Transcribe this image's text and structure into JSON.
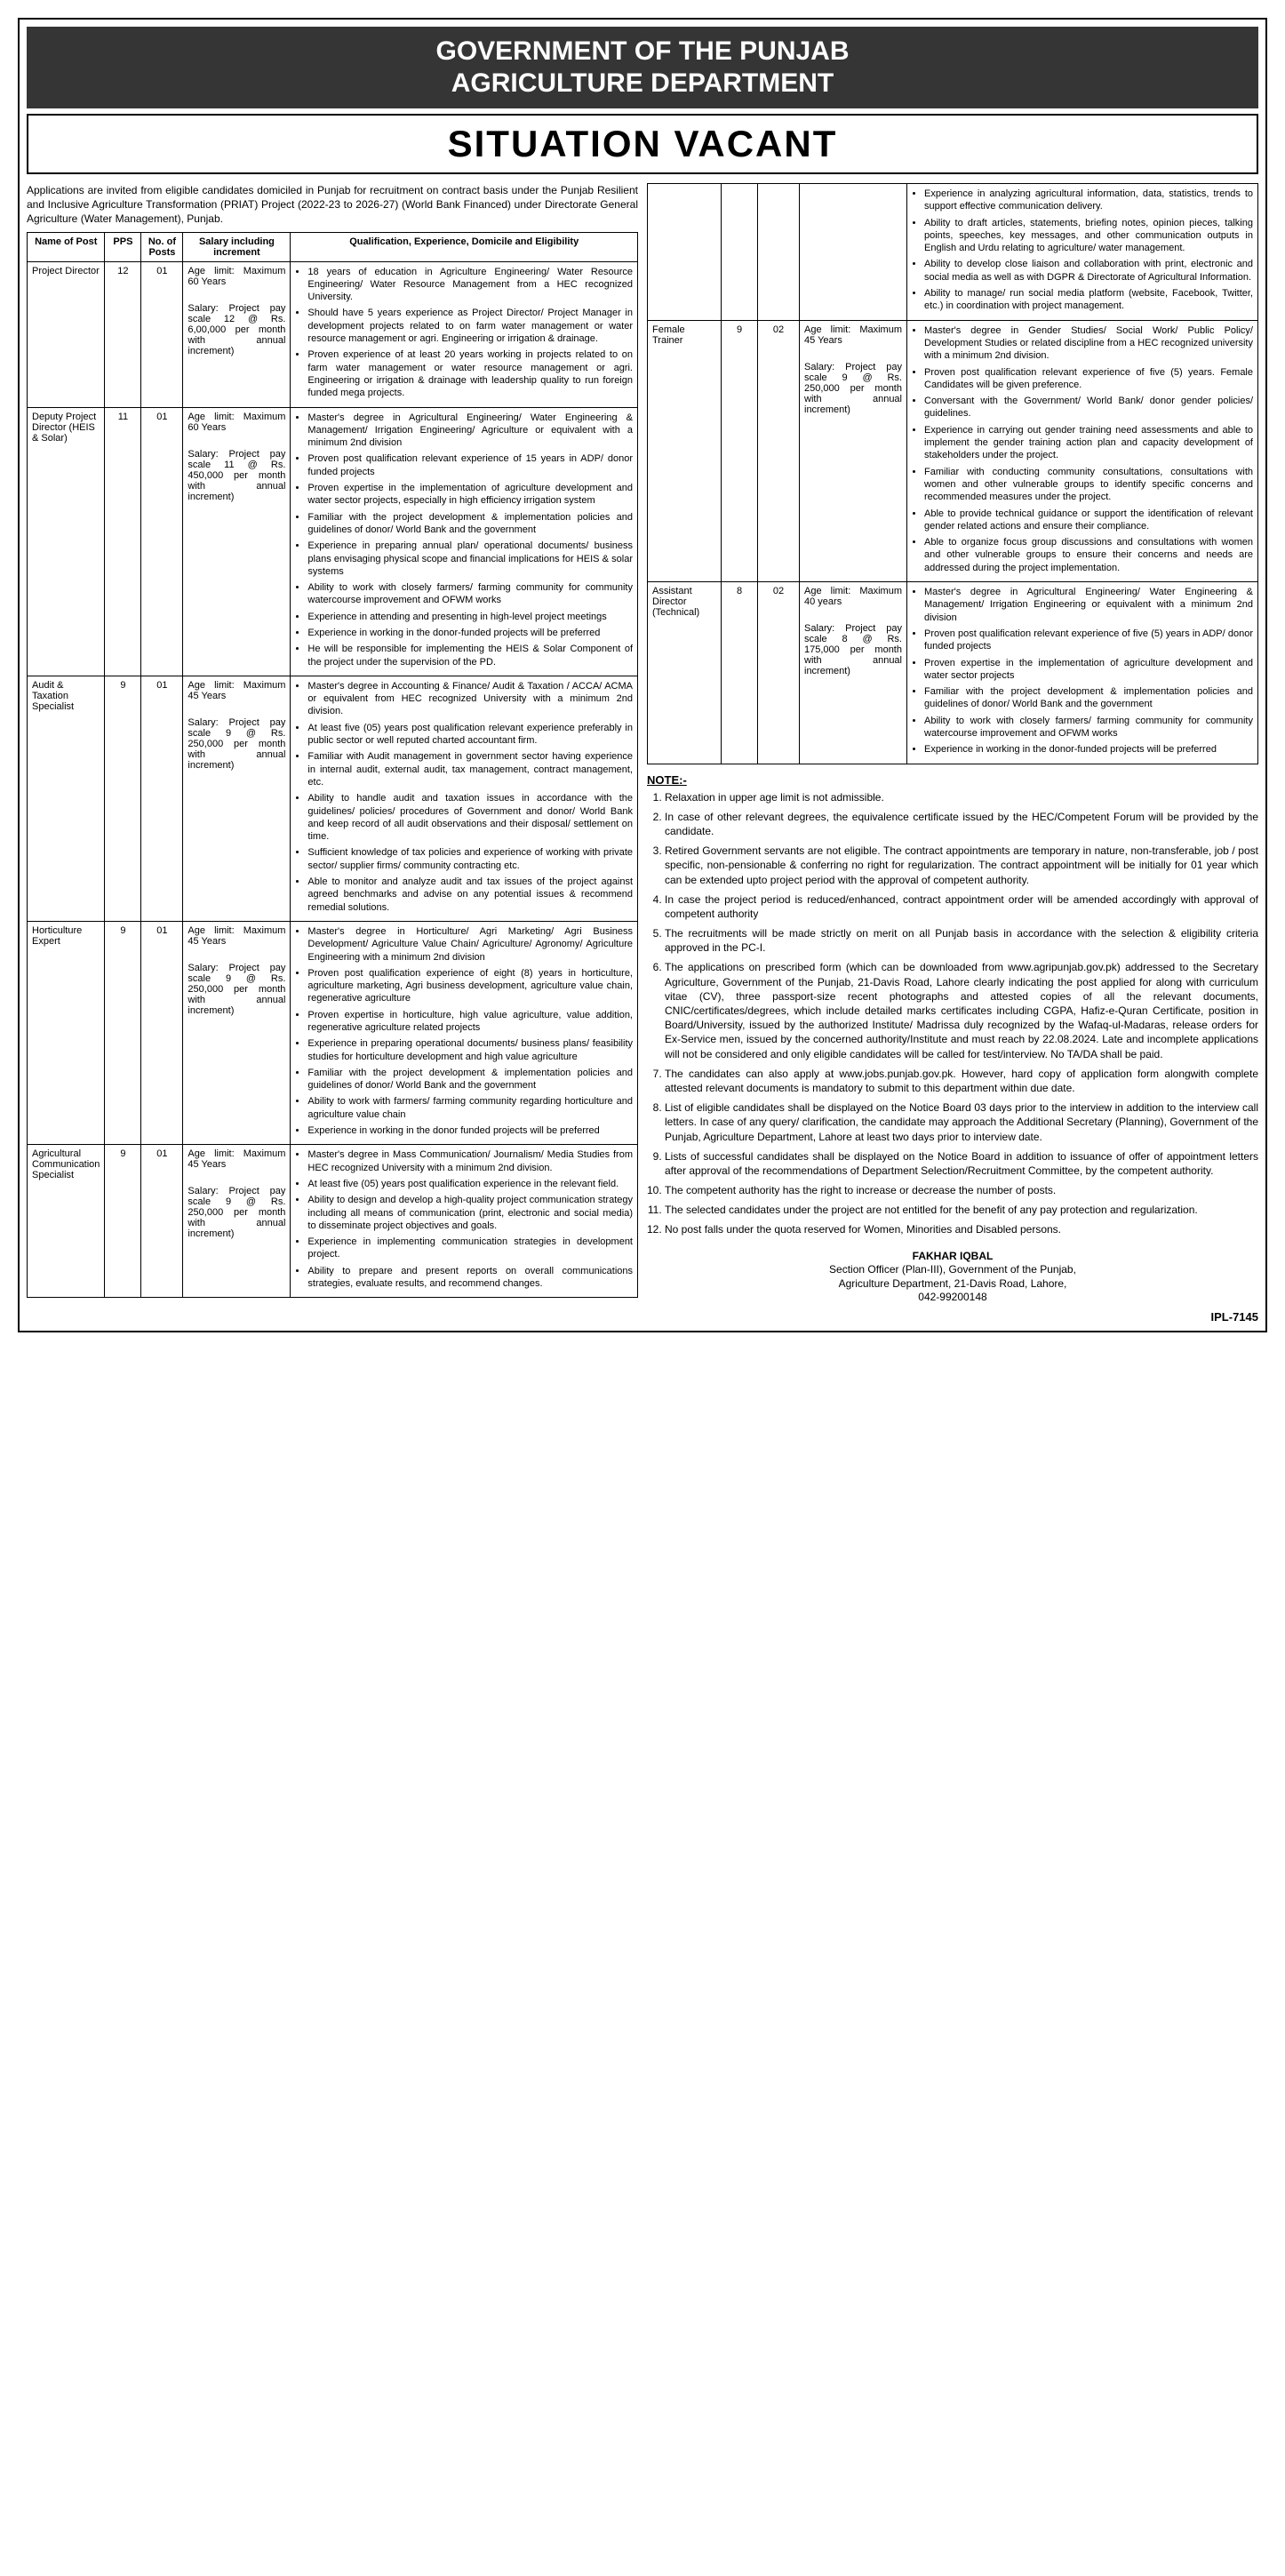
{
  "header_line1": "GOVERNMENT OF THE PUNJAB",
  "header_line2": "AGRICULTURE DEPARTMENT",
  "subheader": "SITUATION VACANT",
  "intro": "Applications are invited from eligible candidates domiciled in Punjab for recruitment on contract basis under the Punjab Resilient and Inclusive Agriculture Transformation (PRIAT) Project (2022-23 to 2026-27) (World Bank Financed) under Directorate General Agriculture (Water Management), Punjab.",
  "th_name": "Name of Post",
  "th_pps": "PPS",
  "th_num": "No. of Posts",
  "th_sal": "Salary including increment",
  "th_qual": "Qualification, Experience, Domicile and Eligibility",
  "posts_left": [
    {
      "name": "Project Director",
      "pps": "12",
      "num": "01",
      "age": "Age limit: Maximum 60 Years",
      "salary": "Salary: Project pay scale 12 @ Rs. 6,00,000 per month with annual increment)",
      "qual": [
        "18 years of education in Agriculture Engineering/ Water Resource Engineering/ Water Resource Management from a HEC recognized University.",
        "Should have 5 years experience as Project Director/ Project Manager in development projects related to on farm water management or water resource management or agri. Engineering or irrigation & drainage.",
        "Proven experience of at least 20 years working in projects related to on farm water management or water resource management or agri. Engineering or irrigation & drainage with leadership quality to run foreign funded mega projects."
      ]
    },
    {
      "name": "Deputy Project Director (HEIS & Solar)",
      "pps": "11",
      "num": "01",
      "age": "Age limit: Maximum 60 Years",
      "salary": "Salary: Project pay scale 11 @ Rs. 450,000 per month with annual increment)",
      "qual": [
        "Master's degree in Agricultural Engineering/ Water Engineering & Management/ Irrigation Engineering/ Agriculture or equivalent with a minimum 2nd division",
        "Proven post qualification relevant experience of 15 years in ADP/ donor funded projects",
        "Proven expertise in the implementation of agriculture development and water sector projects, especially in high efficiency irrigation system",
        "Familiar with the project development & implementation policies and guidelines of donor/ World Bank and the government",
        "Experience in preparing annual plan/ operational documents/ business plans envisaging physical scope and financial implications for HEIS & solar systems",
        "Ability to work with closely farmers/ farming community for community watercourse improvement and OFWM works",
        "Experience in attending and presenting in high-level project meetings",
        "Experience in working in the donor-funded projects will be preferred",
        "He will be responsible for implementing the HEIS & Solar Component of the project under the supervision of the PD."
      ]
    },
    {
      "name": "Audit & Taxation Specialist",
      "pps": "9",
      "num": "01",
      "age": "Age limit: Maximum 45 Years",
      "salary": "Salary: Project pay scale 9 @ Rs. 250,000 per month with annual increment)",
      "qual": [
        "Master's degree in Accounting & Finance/ Audit & Taxation / ACCA/ ACMA or equivalent from HEC recognized University with a minimum 2nd division.",
        "At least five (05) years post qualification relevant experience preferably in public sector or well reputed charted accountant firm.",
        "Familiar with Audit management in government sector having experience in internal audit, external audit, tax management, contract management, etc.",
        "Ability to handle audit and taxation issues in accordance with the guidelines/ policies/ procedures of Government and donor/ World Bank and keep record of all audit observations and their disposal/ settlement on time.",
        "Sufficient knowledge of tax policies and experience of working with private sector/ supplier firms/ community contracting etc.",
        "Able to monitor and analyze audit and tax issues of the project against agreed benchmarks and advise on any potential issues & recommend remedial solutions."
      ]
    },
    {
      "name": "Horticulture Expert",
      "pps": "9",
      "num": "01",
      "age": "Age limit: Maximum 45 Years",
      "salary": "Salary: Project pay scale 9 @ Rs. 250,000 per month with annual increment)",
      "qual": [
        "Master's degree in Horticulture/ Agri Marketing/ Agri Business Development/ Agriculture Value Chain/ Agriculture/ Agronomy/ Agriculture Engineering with a minimum 2nd division",
        "Proven post qualification experience of eight (8) years in horticulture, agriculture marketing, Agri business development, agriculture value chain, regenerative agriculture",
        "Proven expertise in horticulture, high value agriculture, value addition, regenerative agriculture related projects",
        "Experience in preparing operational documents/ business plans/ feasibility studies for horticulture development and high value agriculture",
        "Familiar with the project development & implementation policies and guidelines of donor/ World Bank and the government",
        "Ability to work with farmers/ farming community regarding horticulture and agriculture value chain",
        "Experience in working in the donor funded projects will be preferred"
      ]
    },
    {
      "name": "Agricultural Communication Specialist",
      "pps": "9",
      "num": "01",
      "age": "Age limit: Maximum 45 Years",
      "salary": "Salary: Project pay scale 9 @ Rs. 250,000 per month with annual increment)",
      "qual": [
        "Master's degree in Mass Communication/ Journalism/ Media Studies from HEC recognized University with a minimum 2nd division.",
        "At least five (05) years post qualification experience in the relevant field.",
        "Ability to design and develop a high-quality project communication strategy including all means of communication (print, electronic and social media) to disseminate project objectives and goals.",
        "Experience in implementing communication strategies in development project.",
        "Ability to prepare and present reports on overall communications strategies, evaluate results, and recommend changes."
      ]
    }
  ],
  "overflow_qual": [
    "Experience in analyzing agricultural information, data, statistics, trends to support effective communication delivery.",
    "Ability to draft articles, statements, briefing notes, opinion pieces, talking points, speeches, key messages, and other communication outputs in English and Urdu relating to agriculture/ water management.",
    "Ability to develop close liaison and collaboration with print, electronic and social media as well as with DGPR & Directorate of Agricultural Information.",
    "Ability to manage/ run social media platform (website, Facebook, Twitter, etc.) in coordination with project management."
  ],
  "posts_right": [
    {
      "name": "Female Trainer",
      "pps": "9",
      "num": "02",
      "age": "Age limit: Maximum 45 Years",
      "salary": "Salary: Project pay scale 9 @ Rs. 250,000 per month with annual increment)",
      "qual": [
        "Master's degree in Gender Studies/ Social Work/ Public Policy/ Development Studies or related discipline from a HEC recognized university with a minimum 2nd division.",
        "Proven post qualification relevant experience of five (5) years. Female Candidates will be given preference.",
        "Conversant with the Government/ World Bank/ donor gender policies/ guidelines.",
        "Experience in carrying out gender training need assessments and able to implement the gender training action plan and capacity development of stakeholders under the project.",
        "Familiar with conducting community consultations, consultations with women and other vulnerable groups to identify specific concerns and recommended measures under the project.",
        "Able to provide technical guidance or support the identification of relevant gender related actions and ensure their compliance.",
        "Able to organize focus group discussions and consultations with women and other vulnerable groups to ensure their concerns and needs are addressed during the project implementation."
      ]
    },
    {
      "name": "Assistant Director (Technical)",
      "pps": "8",
      "num": "02",
      "age": "Age limit: Maximum 40 years",
      "salary": "Salary: Project pay scale 8 @ Rs. 175,000 per month with annual increment)",
      "qual": [
        "Master's degree in Agricultural Engineering/ Water Engineering & Management/ Irrigation Engineering or equivalent with a minimum 2nd division",
        "Proven post qualification relevant experience of five (5) years in ADP/ donor funded projects",
        "Proven expertise in the implementation of agriculture development and water sector projects",
        "Familiar with the project development & implementation policies and guidelines of donor/ World Bank and the government",
        "Ability to work with closely farmers/ farming community for community watercourse improvement and OFWM works",
        "Experience in working in the donor-funded projects will be preferred"
      ]
    }
  ],
  "note_hdr": "NOTE:-",
  "notes": [
    "Relaxation in upper age limit is not admissible.",
    "In case of other relevant degrees, the equivalence certificate issued by the HEC/Competent Forum will be provided by the candidate.",
    "Retired Government servants are not eligible. The contract appointments are temporary in nature, non-transferable, job / post specific, non-pensionable & conferring no right for regularization. The contract appointment will be initially for 01 year which can be extended upto project period with the approval of competent authority.",
    "In case the project period is reduced/enhanced, contract appointment order will be amended accordingly with approval of competent authority",
    "The recruitments will be made strictly on merit on all Punjab basis in accordance with the selection & eligibility criteria approved in the PC-I.",
    "The applications on prescribed form (which can be downloaded from www.agripunjab.gov.pk) addressed to the Secretary Agriculture, Government of the Punjab, 21-Davis Road, Lahore clearly indicating the post applied for along with curriculum vitae (CV), three passport-size recent photographs and attested copies of all the relevant documents, CNIC/certificates/degrees, which include detailed marks certificates including CGPA, Hafiz-e-Quran Certificate, position in Board/University, issued by the authorized Institute/ Madrissa duly recognized by the Wafaq-ul-Madaras, release orders for Ex-Service men, issued by the concerned authority/Institute and must reach by 22.08.2024. Late and incomplete applications will not be considered and only eligible candidates will be called for test/interview. No TA/DA shall be paid.",
    "The candidates can also apply at www.jobs.punjab.gov.pk. However, hard copy of application form alongwith complete attested relevant documents is mandatory to submit to this department within due date.",
    "List of eligible candidates shall be displayed on the Notice Board 03 days prior to the interview in addition to the interview call letters. In case of any query/ clarification, the candidate may approach the Additional Secretary (Planning), Government of the Punjab, Agriculture Department, Lahore at least two days prior to interview date.",
    "Lists of successful candidates shall be displayed on the Notice Board in addition to issuance of offer of appointment letters after approval of the recommendations of Department Selection/Recruitment Committee, by the competent authority.",
    "The competent authority has the right to increase or decrease the number of posts.",
    "The selected candidates under the project are not entitled for the benefit of any pay protection and regularization.",
    "No post falls under the quota reserved for Women, Minorities and Disabled persons."
  ],
  "sig_name": "FAKHAR IQBAL",
  "sig_line1": "Section Officer (Plan-III), Government of the Punjab,",
  "sig_line2": "Agriculture Department, 21-Davis Road, Lahore,",
  "sig_line3": "042-99200148",
  "ipl": "IPL-7145"
}
